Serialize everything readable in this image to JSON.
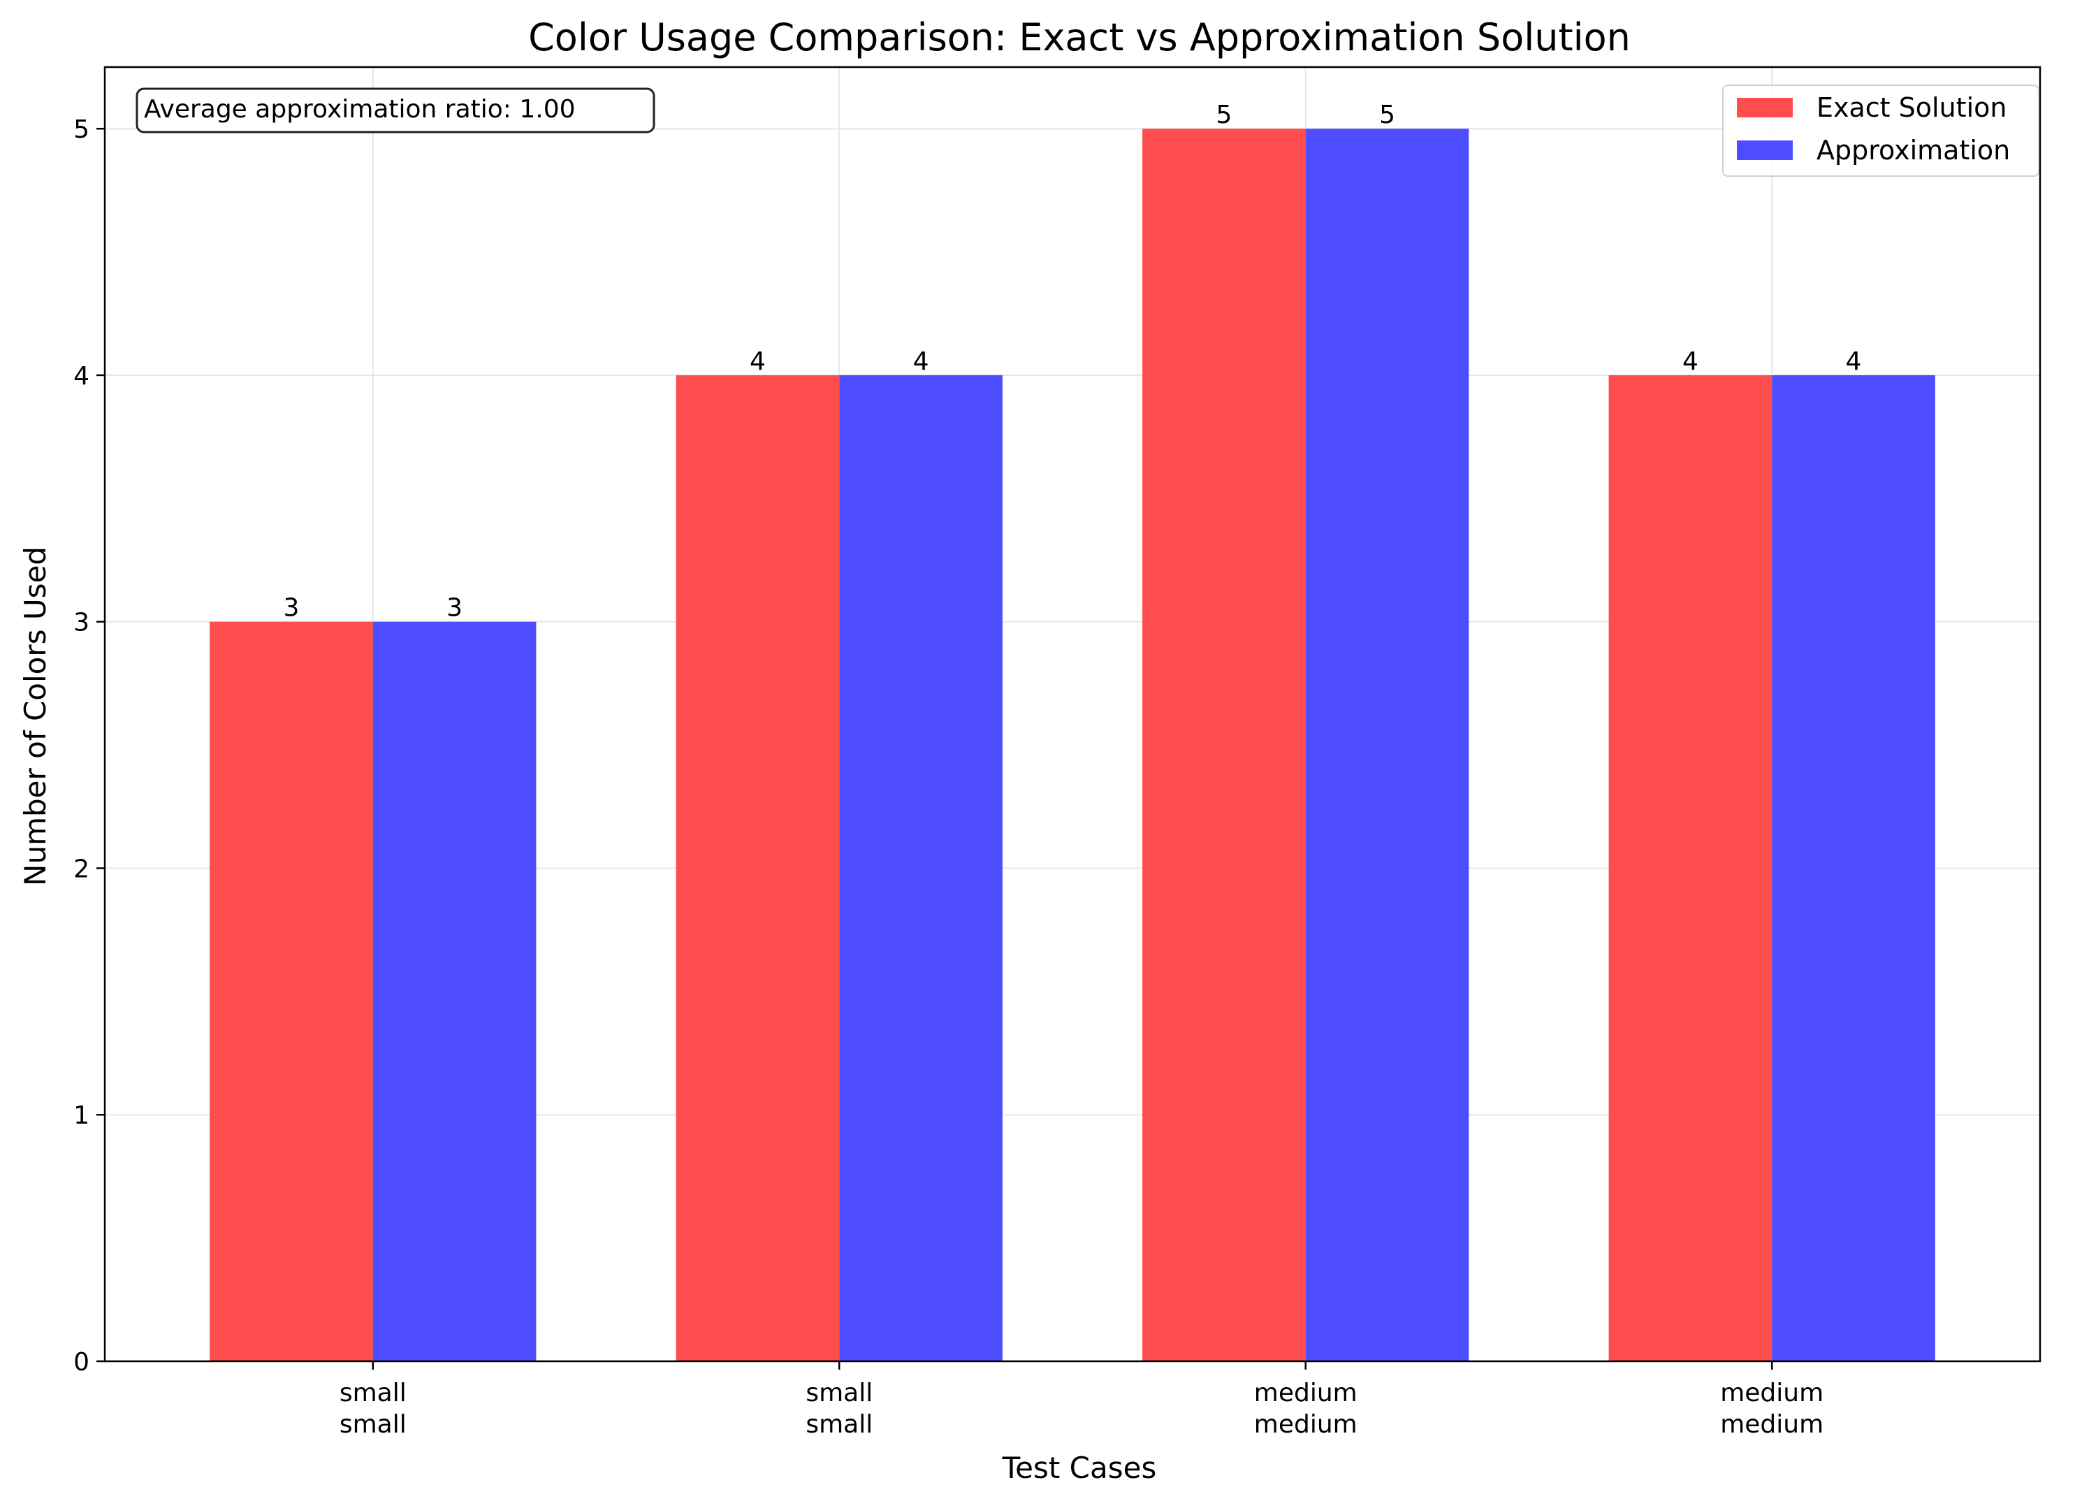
{
  "chart_data": {
    "type": "bar",
    "title": "Color Usage Comparison: Exact vs Approximation Solution",
    "xlabel": "Test Cases",
    "ylabel": "Number of Colors Used",
    "categories": [
      [
        "small",
        "small"
      ],
      [
        "small",
        "small"
      ],
      [
        "medium",
        "medium"
      ],
      [
        "medium",
        "medium"
      ]
    ],
    "series": [
      {
        "name": "Exact Solution",
        "values": [
          3,
          4,
          5,
          4
        ],
        "color": "#ff4d4d"
      },
      {
        "name": "Approximation",
        "values": [
          3,
          4,
          5,
          4
        ],
        "color": "#4d4dff"
      }
    ],
    "ylim": [
      0,
      5.25
    ],
    "yticks": [
      0,
      1,
      2,
      3,
      4,
      5
    ],
    "grid": true,
    "legend_position": "top-right",
    "annotation": "Average approximation ratio: 1.00"
  }
}
